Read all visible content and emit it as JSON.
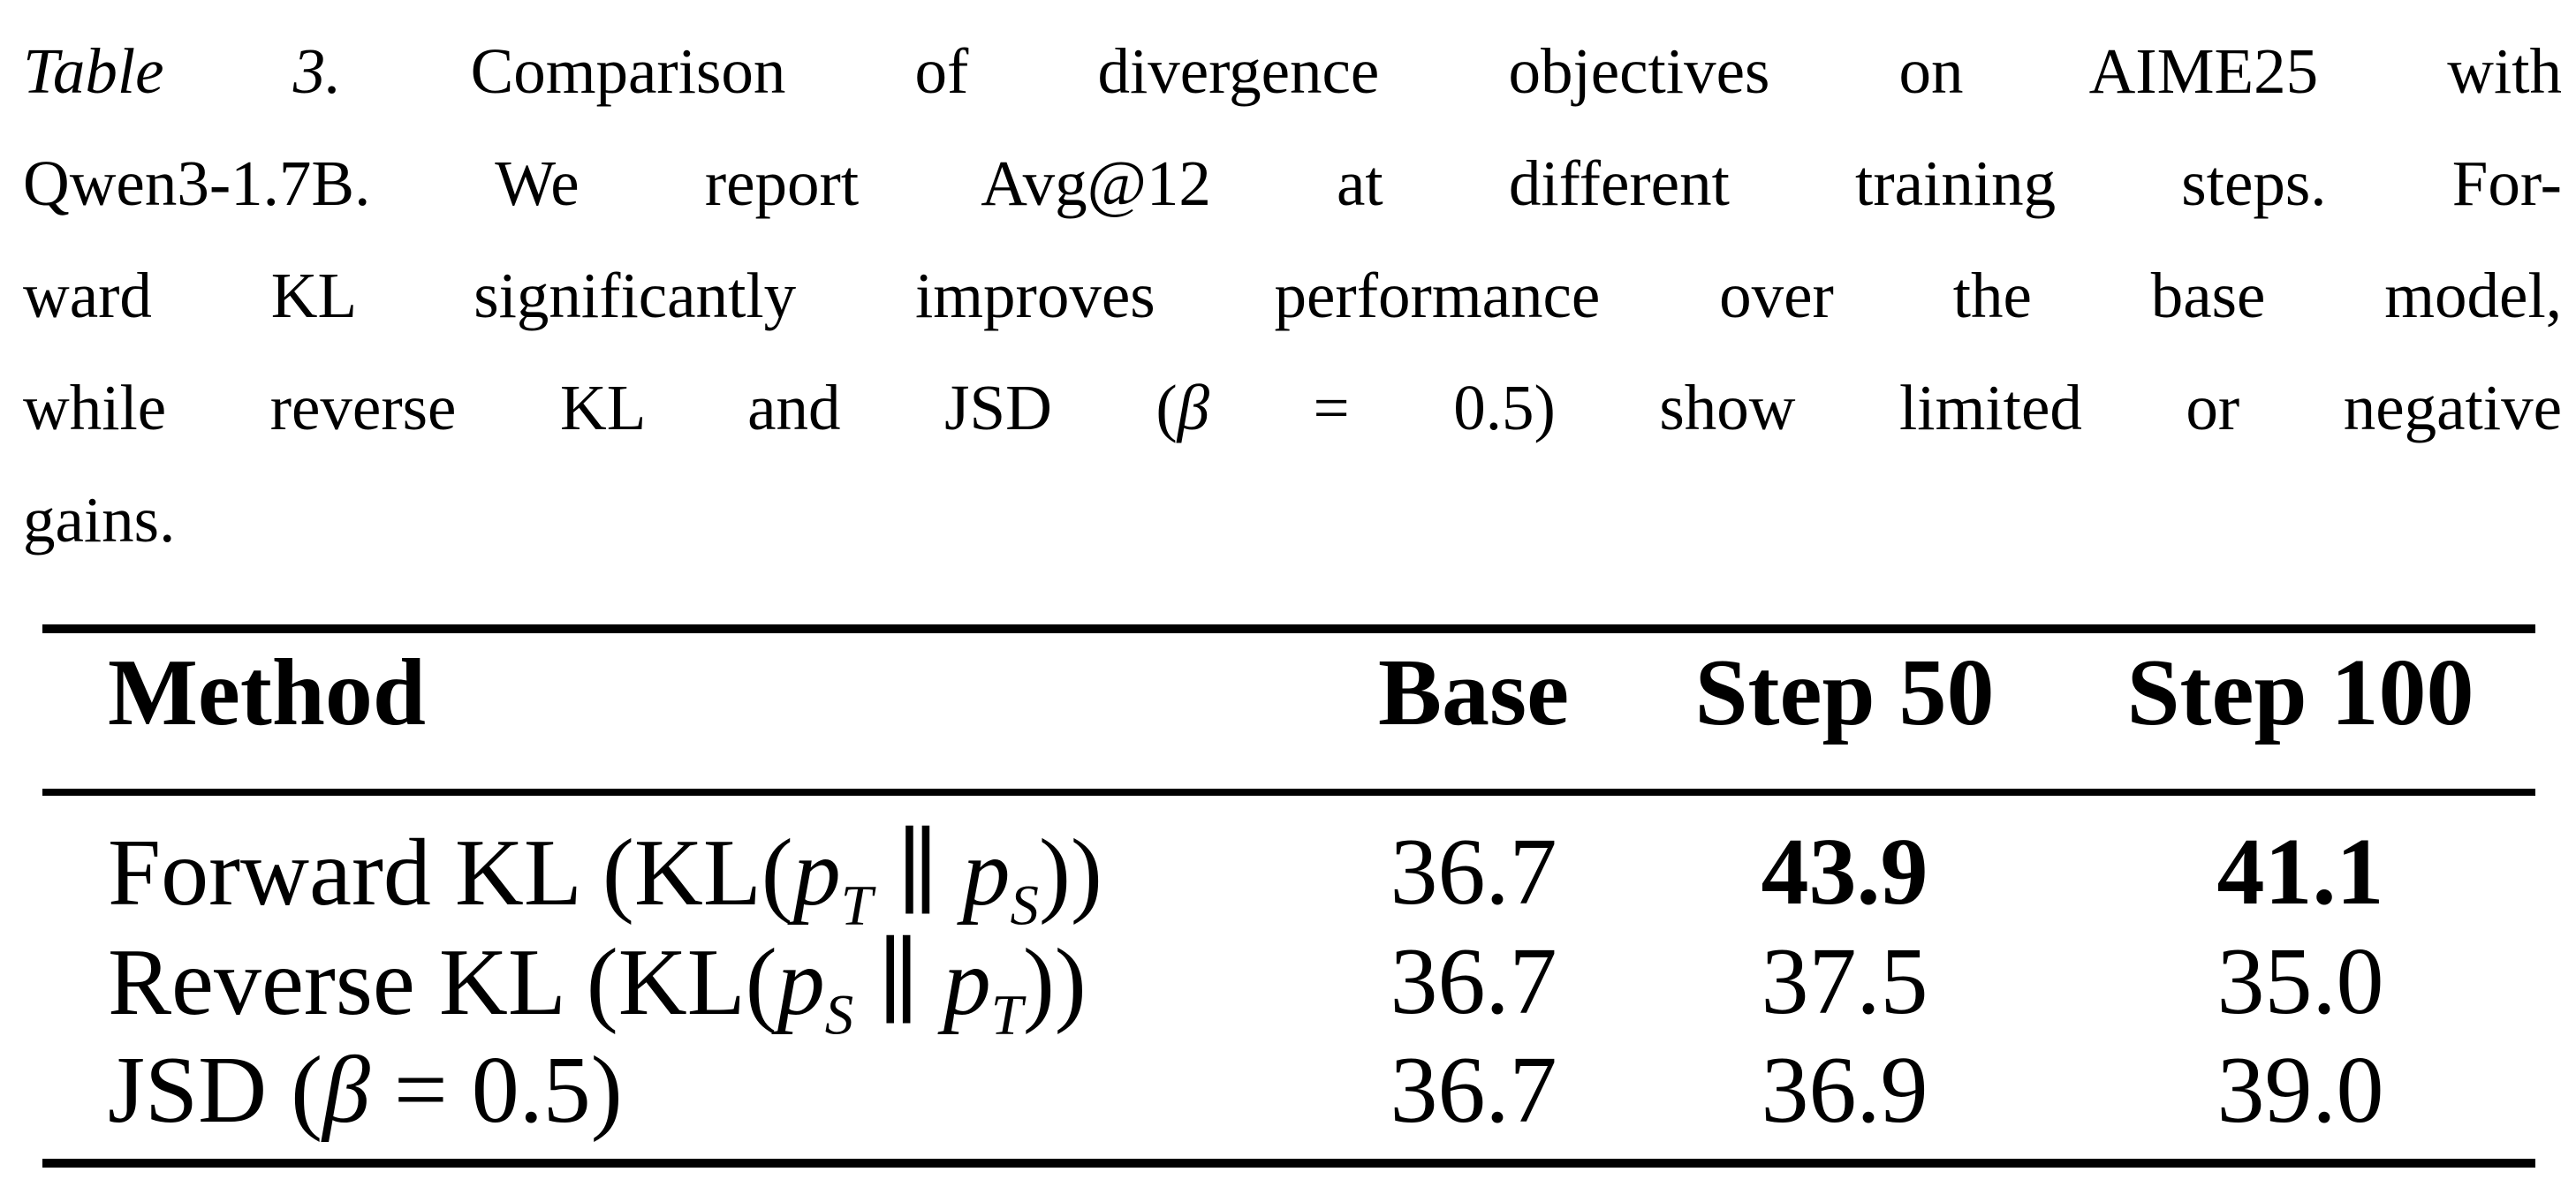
{
  "colors": {
    "background": "#ffffff",
    "text": "#000000",
    "rule": "#000000"
  },
  "caption": {
    "label": "Table 3.",
    "line1_rest": "Comparison of divergence objectives on AIME25 with",
    "line2": "Qwen3-1.7B. We report Avg@12 at different training steps. For-",
    "line3": "ward KL significantly improves performance over the base model,",
    "line4_pre": "while reverse KL and JSD (",
    "line4_beta": "β",
    "line4_post": " = 0.5) show limited or negative",
    "line5": "gains."
  },
  "table": {
    "headers": {
      "method": "Method",
      "base": "Base",
      "step50": "Step 50",
      "step100": "Step 100"
    },
    "rows": [
      {
        "method": {
          "pre": "Forward KL (KL(",
          "p1": "p",
          "sub1": "T",
          "parallel": "∥",
          "p2": "p",
          "sub2": "S",
          "post": "))"
        },
        "base": "36.7",
        "step50": "43.9",
        "step100": "41.1",
        "step50_bold": true,
        "step100_bold": true
      },
      {
        "method": {
          "pre": "Reverse KL (KL(",
          "p1": "p",
          "sub1": "S",
          "parallel": "∥",
          "p2": "p",
          "sub2": "T",
          "post": "))"
        },
        "base": "36.7",
        "step50": "37.5",
        "step100": "35.0",
        "step50_bold": false,
        "step100_bold": false
      },
      {
        "method": {
          "pre": "JSD (",
          "beta": "β",
          "post": " = 0.5)"
        },
        "base": "36.7",
        "step50": "36.9",
        "step100": "39.0",
        "step50_bold": false,
        "step100_bold": false
      }
    ]
  }
}
